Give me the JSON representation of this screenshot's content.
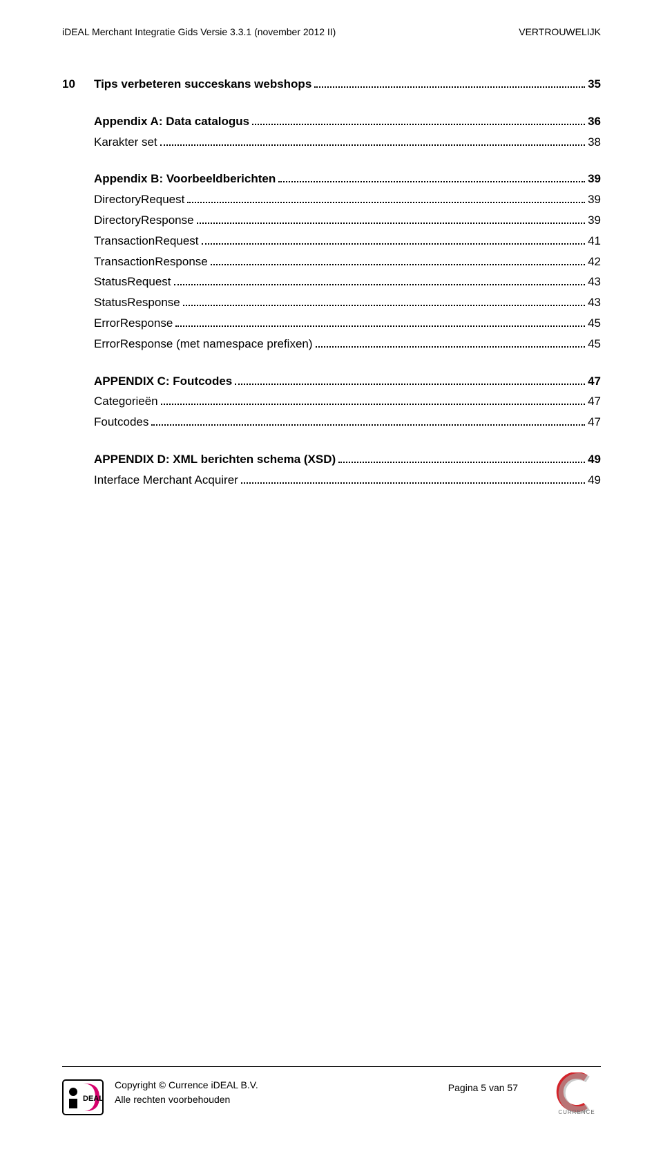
{
  "header": {
    "left": "iDEAL Merchant Integratie Gids Versie 3.3.1 (november 2012 II)",
    "right": "VERTROUWELIJK"
  },
  "toc": [
    {
      "type": "line",
      "bold": true,
      "indent": 0,
      "num": "10",
      "label": "Tips verbeteren succeskans webshops",
      "page": "35"
    },
    {
      "type": "gap"
    },
    {
      "type": "line",
      "bold": true,
      "indent": 0,
      "num": "",
      "label": "Appendix A: Data catalogus",
      "page": "36"
    },
    {
      "type": "line",
      "bold": false,
      "indent": 1,
      "num": "",
      "label": "Karakter set",
      "page": "38"
    },
    {
      "type": "gap"
    },
    {
      "type": "line",
      "bold": true,
      "indent": 0,
      "num": "",
      "label": "Appendix B: Voorbeeldberichten",
      "page": "39"
    },
    {
      "type": "line",
      "bold": false,
      "indent": 1,
      "num": "",
      "label": "DirectoryRequest",
      "page": "39"
    },
    {
      "type": "line",
      "bold": false,
      "indent": 1,
      "num": "",
      "label": "DirectoryResponse",
      "page": "39"
    },
    {
      "type": "line",
      "bold": false,
      "indent": 1,
      "num": "",
      "label": "TransactionRequest",
      "page": "41"
    },
    {
      "type": "line",
      "bold": false,
      "indent": 1,
      "num": "",
      "label": "TransactionResponse",
      "page": "42"
    },
    {
      "type": "line",
      "bold": false,
      "indent": 1,
      "num": "",
      "label": "StatusRequest",
      "page": "43"
    },
    {
      "type": "line",
      "bold": false,
      "indent": 1,
      "num": "",
      "label": "StatusResponse",
      "page": "43"
    },
    {
      "type": "line",
      "bold": false,
      "indent": 1,
      "num": "",
      "label": "ErrorResponse",
      "page": "45"
    },
    {
      "type": "line",
      "bold": false,
      "indent": 1,
      "num": "",
      "label": "ErrorResponse (met namespace prefixen)",
      "page": "45"
    },
    {
      "type": "gap"
    },
    {
      "type": "line",
      "bold": true,
      "indent": 0,
      "num": "",
      "label": "APPENDIX C: Foutcodes",
      "page": "47"
    },
    {
      "type": "line",
      "bold": false,
      "indent": 1,
      "num": "",
      "label": "Categorieën",
      "page": "47"
    },
    {
      "type": "line",
      "bold": false,
      "indent": 1,
      "num": "",
      "label": "Foutcodes",
      "page": "47"
    },
    {
      "type": "gap"
    },
    {
      "type": "line",
      "bold": true,
      "indent": 0,
      "num": "",
      "label": "APPENDIX D: XML berichten schema (XSD)",
      "page": "49"
    },
    {
      "type": "line",
      "bold": false,
      "indent": 1,
      "num": "",
      "label": "Interface Merchant Acquirer",
      "page": "49"
    }
  ],
  "footer": {
    "copyright": "Copyright © Currence iDEAL B.V.",
    "rights": "Alle rechten voorbehouden",
    "page": "Pagina 5 van 57"
  },
  "logos": {
    "ideal": {
      "bg": "#ffffff",
      "border": "#000000",
      "pink": "#d6006c",
      "text": "#000000",
      "blackbox": "#000000"
    },
    "currence": {
      "red": "#d3232a",
      "silver": "#a9a9a9",
      "text": "#6b6b6b",
      "label": "CURRENCE"
    }
  }
}
